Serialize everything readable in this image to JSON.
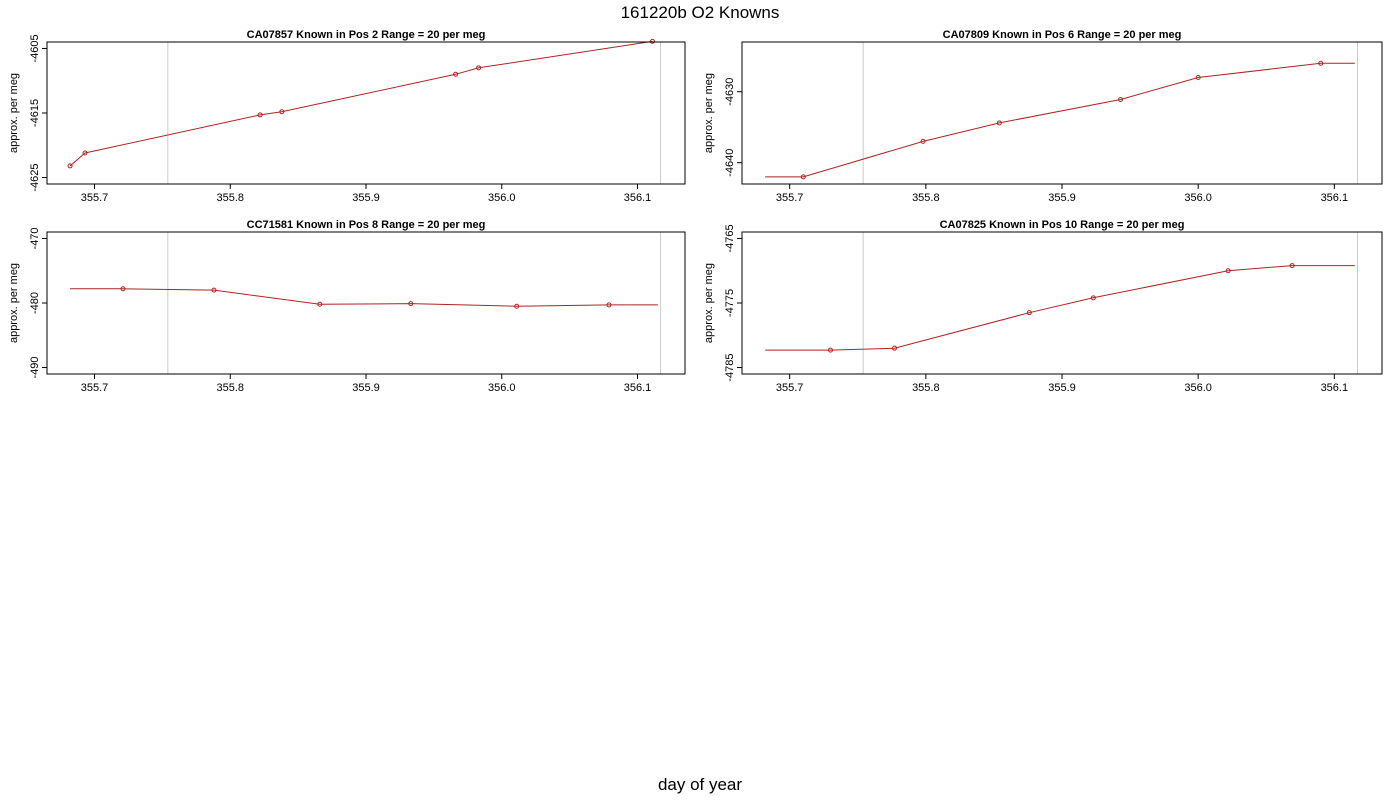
{
  "title": "161220b   O2 Knowns",
  "xlabel": "day of year",
  "colors": {
    "series": "#b22222",
    "frame": "#000000",
    "marker_line": "#cccccc"
  },
  "chart_data": [
    {
      "type": "line",
      "title_parts": [
        "CA07857",
        "Known in Pos 2",
        "Range = 20 per meg"
      ],
      "ylabel": "approx. per meg",
      "xlim": [
        355.665,
        356.135
      ],
      "ylim": [
        -4626,
        -4604
      ],
      "yticks": [
        -4605,
        -4615,
        -4625
      ],
      "ytick_labels": [
        "-4605",
        "-4615",
        "-4625"
      ],
      "xticks": [
        355.7,
        355.8,
        355.9,
        356.0,
        356.1
      ],
      "xtick_labels": [
        "355.7",
        "355.8",
        "355.9",
        "356.0",
        "356.1"
      ],
      "vlines": [
        355.754,
        356.117
      ],
      "x": [
        355.682,
        355.693,
        355.822,
        355.838,
        355.966,
        355.983,
        356.111
      ],
      "y": [
        -4623.2,
        -4621.2,
        -4615.3,
        -4614.8,
        -4609.0,
        -4608.0,
        -4603.9
      ],
      "markers": [
        true,
        true,
        true,
        true,
        true,
        true,
        true
      ],
      "grid": false
    },
    {
      "type": "line",
      "title_parts": [
        "CA07809",
        "Known in Pos 6",
        "Range = 20 per meg"
      ],
      "ylabel": "approx. per meg",
      "xlim": [
        355.665,
        356.135
      ],
      "ylim": [
        -4643,
        -4623
      ],
      "yticks": [
        -4630,
        -4640
      ],
      "ytick_labels": [
        "-4630",
        "-4640"
      ],
      "xticks": [
        355.7,
        355.8,
        355.9,
        356.0,
        356.1
      ],
      "xtick_labels": [
        "355.7",
        "355.8",
        "355.9",
        "356.0",
        "356.1"
      ],
      "vlines": [
        355.754,
        356.117
      ],
      "x": [
        355.682,
        355.71,
        355.798,
        355.854,
        355.943,
        356.0,
        356.09,
        356.115
      ],
      "y": [
        -4642.0,
        -4642.0,
        -4637.0,
        -4634.4,
        -4631.1,
        -4628.0,
        -4626.0,
        -4626.0
      ],
      "markers": [
        false,
        true,
        true,
        true,
        true,
        true,
        true,
        false
      ],
      "grid": false
    },
    {
      "type": "line",
      "title_parts": [
        "CC71581",
        "Known in Pos 8",
        "Range = 20 per meg"
      ],
      "ylabel": "approx. per meg",
      "xlim": [
        355.665,
        356.135
      ],
      "ylim": [
        -491,
        -469
      ],
      "yticks": [
        -470,
        -480,
        -490
      ],
      "ytick_labels": [
        "-470",
        "-480",
        "-490"
      ],
      "xticks": [
        355.7,
        355.8,
        355.9,
        356.0,
        356.1
      ],
      "xtick_labels": [
        "355.7",
        "355.8",
        "355.9",
        "356.0",
        "356.1"
      ],
      "vlines": [
        355.754,
        356.117
      ],
      "x": [
        355.682,
        355.721,
        355.788,
        355.866,
        355.933,
        356.011,
        356.079,
        356.115
      ],
      "y": [
        -477.8,
        -477.8,
        -478.0,
        -480.2,
        -480.1,
        -480.5,
        -480.3,
        -480.3
      ],
      "markers": [
        false,
        true,
        true,
        true,
        true,
        true,
        true,
        false
      ],
      "grid": false
    },
    {
      "type": "line",
      "title_parts": [
        "CA07825",
        "Known in Pos 10",
        "Range = 20 per meg"
      ],
      "ylabel": "approx. per meg",
      "xlim": [
        355.665,
        356.135
      ],
      "ylim": [
        -4786,
        -4764
      ],
      "yticks": [
        -4765,
        -4775,
        -4785
      ],
      "ytick_labels": [
        "-4765",
        "-4775",
        "-4785"
      ],
      "xticks": [
        355.7,
        355.8,
        355.9,
        356.0,
        356.1
      ],
      "xtick_labels": [
        "355.7",
        "355.8",
        "355.9",
        "356.0",
        "356.1"
      ],
      "vlines": [
        355.754,
        356.117
      ],
      "x": [
        355.682,
        355.73,
        355.777,
        355.876,
        355.923,
        356.022,
        356.069,
        356.115
      ],
      "y": [
        -4782.3,
        -4782.3,
        -4782.0,
        -4776.5,
        -4774.2,
        -4770.0,
        -4769.2,
        -4769.2
      ],
      "markers": [
        false,
        true,
        true,
        true,
        true,
        true,
        true,
        false
      ],
      "grid": false
    }
  ]
}
